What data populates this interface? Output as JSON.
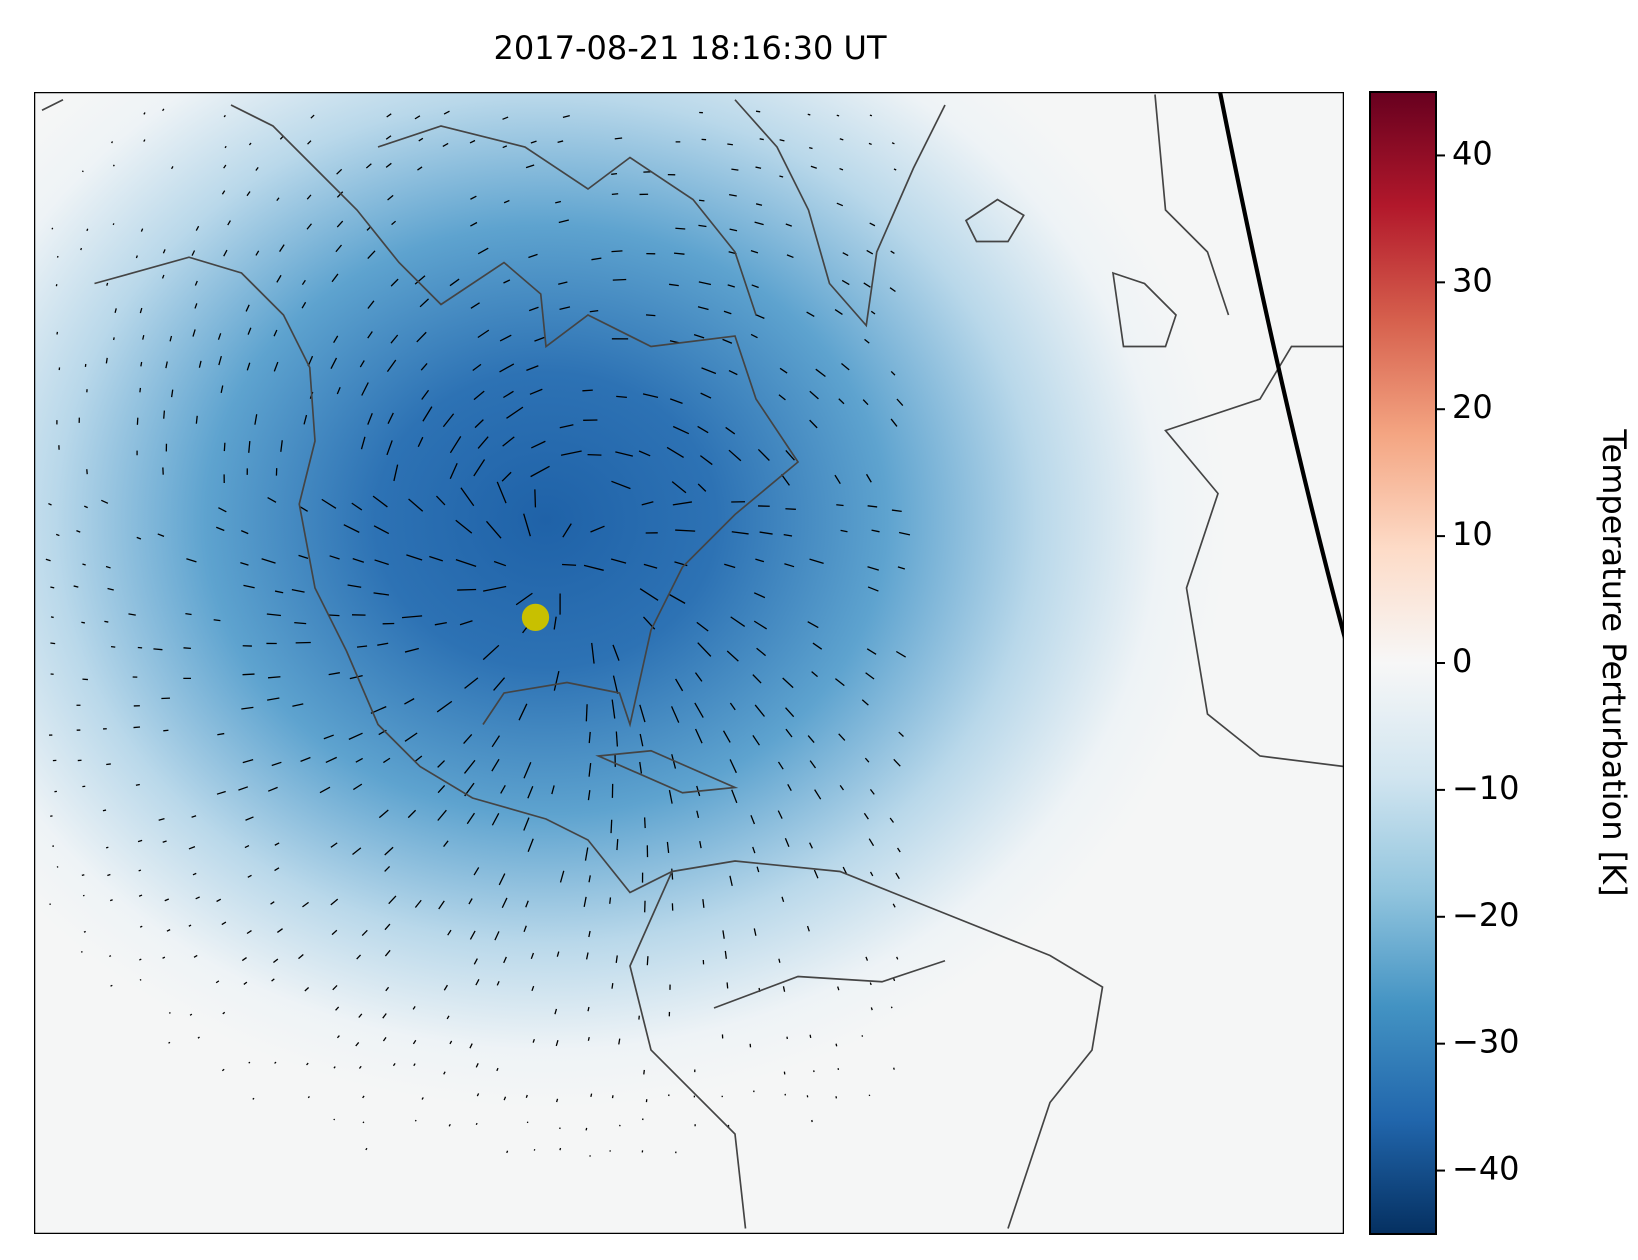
{
  "chart_data": {
    "type": "map",
    "title": "2017-08-21 18:16:30 UT",
    "colorbar_label": "Temperature Perturbation [K]",
    "colormap": [
      "#053061",
      "#2166ac",
      "#4393c3",
      "#92c5de",
      "#d1e5f0",
      "#f7f7f7",
      "#fddbc7",
      "#f4a582",
      "#d6604d",
      "#b2182b",
      "#67001f"
    ],
    "clim": [
      -45,
      45
    ],
    "cticks": [
      {
        "value": -40,
        "label": "−40"
      },
      {
        "value": -30,
        "label": "−30"
      },
      {
        "value": -20,
        "label": "−20"
      },
      {
        "value": -10,
        "label": "−10"
      },
      0,
      10,
      20,
      30,
      40
    ]
  }
}
